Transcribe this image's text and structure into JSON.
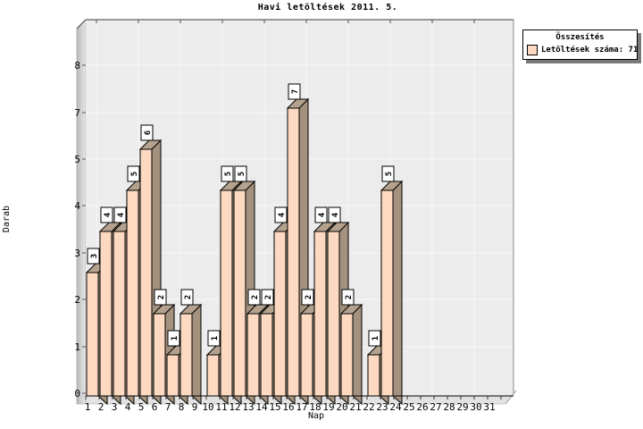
{
  "title": "Havi letöltések 2011. 5.",
  "legend": {
    "title": "Összesítés",
    "entries": [
      {
        "label": "Letöltések száma: 71",
        "swatch_color": "#fcd9c0"
      }
    ]
  },
  "chart_data": {
    "type": "bar",
    "style": "3d-bars",
    "title": "Havi letöltések 2011. 5.",
    "xlabel": "Nap",
    "ylabel": "Darab",
    "categories": [
      "1",
      "2",
      "3",
      "4",
      "5",
      "6",
      "7",
      "8",
      "9",
      "10",
      "11",
      "12",
      "13",
      "14",
      "15",
      "16",
      "17",
      "18",
      "19",
      "20",
      "21",
      "22",
      "23",
      "24",
      "25",
      "26",
      "27",
      "28",
      "29",
      "30",
      "31"
    ],
    "values": [
      3,
      4,
      4,
      5,
      6,
      2,
      1,
      2,
      0,
      1,
      5,
      5,
      2,
      2,
      4,
      7,
      2,
      4,
      4,
      2,
      0,
      1,
      5,
      0,
      0,
      0,
      0,
      0,
      0,
      0,
      0
    ],
    "total": 71,
    "bar_value_labels_visible": true,
    "y_tick_labels": [
      "0",
      "1",
      "2",
      "3",
      "4",
      "5",
      "7",
      "8"
    ],
    "ylim": [
      0,
      8.5
    ],
    "grid": true,
    "legend_position": "top-right",
    "legend": {
      "title": "Összesítés",
      "entries": [
        {
          "label": "Letöltések száma: 71",
          "swatch_color": "#fcd9c0"
        }
      ]
    },
    "colors": {
      "bar_front": "#fcd9c0",
      "bar_side": "#a5927e",
      "bar_top": "#b4a28e",
      "plot_bg": "#ececec",
      "gridline": "#f9f9f9",
      "outline": "#000000",
      "label_box_bg": "#ffffff",
      "wall_dark": "#b9b9b9",
      "wall_light": "#e8e8e8",
      "floor": "#e2e2e2"
    }
  }
}
